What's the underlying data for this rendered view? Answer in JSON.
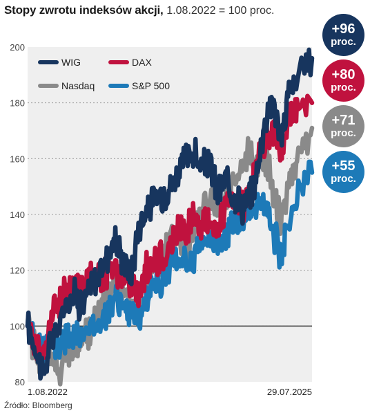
{
  "title": {
    "bold": "Stopy zwrotu indeksów akcji,",
    "rest": "1.08.2022 = 100 proc."
  },
  "source": "Źródło: Bloomberg",
  "badges": [
    {
      "value": "+96",
      "unit": "proc.",
      "color": "#17355e"
    },
    {
      "value": "+80",
      "unit": "proc.",
      "color": "#c0123e"
    },
    {
      "value": "+71",
      "unit": "proc.",
      "color": "#8a8a8a"
    },
    {
      "value": "+55",
      "unit": "proc.",
      "color": "#1d7ab8"
    }
  ],
  "chart_data": {
    "type": "line",
    "x_labels": [
      "1.08.2022",
      "29.07.2025"
    ],
    "x_range": [
      "2022-08-01",
      "2025-07-29"
    ],
    "ylim": [
      80,
      200
    ],
    "yticks": [
      80,
      100,
      120,
      140,
      160,
      180,
      200
    ],
    "baseline": 100,
    "grid": true,
    "legend": "top-left",
    "series": [
      {
        "name": "WIG",
        "color": "#17355e",
        "points": [
          [
            "2022-08-01",
            100
          ],
          [
            "2022-09-01",
            92
          ],
          [
            "2022-10-01",
            83
          ],
          [
            "2022-11-01",
            95
          ],
          [
            "2022-12-01",
            100
          ],
          [
            "2023-01-01",
            110
          ],
          [
            "2023-02-01",
            112
          ],
          [
            "2023-03-01",
            106
          ],
          [
            "2023-04-01",
            115
          ],
          [
            "2023-05-01",
            118
          ],
          [
            "2023-06-01",
            125
          ],
          [
            "2023-07-01",
            131
          ],
          [
            "2023-08-01",
            124
          ],
          [
            "2023-09-01",
            118
          ],
          [
            "2023-10-01",
            135
          ],
          [
            "2023-11-01",
            142
          ],
          [
            "2023-12-01",
            145
          ],
          [
            "2024-01-01",
            147
          ],
          [
            "2024-02-01",
            150
          ],
          [
            "2024-03-01",
            155
          ],
          [
            "2024-04-01",
            160
          ],
          [
            "2024-05-01",
            162
          ],
          [
            "2024-06-01",
            156
          ],
          [
            "2024-07-01",
            159
          ],
          [
            "2024-08-01",
            147
          ],
          [
            "2024-09-01",
            152
          ],
          [
            "2024-10-01",
            148
          ],
          [
            "2024-11-01",
            143
          ],
          [
            "2024-12-01",
            145
          ],
          [
            "2025-01-01",
            156
          ],
          [
            "2025-02-01",
            175
          ],
          [
            "2025-03-01",
            182
          ],
          [
            "2025-04-01",
            165
          ],
          [
            "2025-05-01",
            185
          ],
          [
            "2025-06-01",
            188
          ],
          [
            "2025-07-29",
            196
          ]
        ]
      },
      {
        "name": "DAX",
        "color": "#c0123e",
        "points": [
          [
            "2022-08-01",
            100
          ],
          [
            "2022-09-01",
            94
          ],
          [
            "2022-10-01",
            88
          ],
          [
            "2022-11-01",
            104
          ],
          [
            "2022-12-01",
            108
          ],
          [
            "2023-01-01",
            114
          ],
          [
            "2023-02-01",
            116
          ],
          [
            "2023-03-01",
            113
          ],
          [
            "2023-04-01",
            118
          ],
          [
            "2023-05-01",
            118
          ],
          [
            "2023-06-01",
            120
          ],
          [
            "2023-07-01",
            122
          ],
          [
            "2023-08-01",
            118
          ],
          [
            "2023-09-01",
            114
          ],
          [
            "2023-10-01",
            112
          ],
          [
            "2023-11-01",
            120
          ],
          [
            "2023-12-01",
            125
          ],
          [
            "2024-01-01",
            124
          ],
          [
            "2024-02-01",
            128
          ],
          [
            "2024-03-01",
            135
          ],
          [
            "2024-04-01",
            134
          ],
          [
            "2024-05-01",
            140
          ],
          [
            "2024-06-01",
            136
          ],
          [
            "2024-07-01",
            138
          ],
          [
            "2024-08-01",
            134
          ],
          [
            "2024-09-01",
            142
          ],
          [
            "2024-10-01",
            144
          ],
          [
            "2024-11-01",
            142
          ],
          [
            "2024-12-01",
            148
          ],
          [
            "2025-01-01",
            160
          ],
          [
            "2025-02-01",
            168
          ],
          [
            "2025-03-01",
            170
          ],
          [
            "2025-04-01",
            160
          ],
          [
            "2025-05-01",
            175
          ],
          [
            "2025-06-01",
            178
          ],
          [
            "2025-07-29",
            180
          ]
        ]
      },
      {
        "name": "Nasdaq",
        "color": "#8a8a8a",
        "points": [
          [
            "2022-08-01",
            100
          ],
          [
            "2022-09-01",
            92
          ],
          [
            "2022-10-01",
            85
          ],
          [
            "2022-11-01",
            90
          ],
          [
            "2022-12-01",
            84
          ],
          [
            "2023-01-01",
            90
          ],
          [
            "2023-02-01",
            92
          ],
          [
            "2023-03-01",
            96
          ],
          [
            "2023-04-01",
            98
          ],
          [
            "2023-05-01",
            106
          ],
          [
            "2023-06-01",
            112
          ],
          [
            "2023-07-01",
            115
          ],
          [
            "2023-08-01",
            112
          ],
          [
            "2023-09-01",
            108
          ],
          [
            "2023-10-01",
            106
          ],
          [
            "2023-11-01",
            116
          ],
          [
            "2023-12-01",
            122
          ],
          [
            "2024-01-01",
            125
          ],
          [
            "2024-02-01",
            130
          ],
          [
            "2024-03-01",
            133
          ],
          [
            "2024-04-01",
            128
          ],
          [
            "2024-05-01",
            136
          ],
          [
            "2024-06-01",
            142
          ],
          [
            "2024-07-01",
            145
          ],
          [
            "2024-08-01",
            140
          ],
          [
            "2024-09-01",
            145
          ],
          [
            "2024-10-01",
            150
          ],
          [
            "2024-11-01",
            155
          ],
          [
            "2024-12-01",
            162
          ],
          [
            "2025-01-01",
            158
          ],
          [
            "2025-02-01",
            160
          ],
          [
            "2025-03-01",
            150
          ],
          [
            "2025-04-01",
            138
          ],
          [
            "2025-05-01",
            152
          ],
          [
            "2025-06-01",
            160
          ],
          [
            "2025-07-29",
            171
          ]
        ]
      },
      {
        "name": "S&P 500",
        "color": "#1d7ab8",
        "points": [
          [
            "2022-08-01",
            100
          ],
          [
            "2022-09-01",
            94
          ],
          [
            "2022-10-01",
            90
          ],
          [
            "2022-11-01",
            96
          ],
          [
            "2022-12-01",
            93
          ],
          [
            "2023-01-01",
            97
          ],
          [
            "2023-02-01",
            96
          ],
          [
            "2023-03-01",
            98
          ],
          [
            "2023-04-01",
            100
          ],
          [
            "2023-05-01",
            101
          ],
          [
            "2023-06-01",
            106
          ],
          [
            "2023-07-01",
            110
          ],
          [
            "2023-08-01",
            108
          ],
          [
            "2023-09-01",
            104
          ],
          [
            "2023-10-01",
            101
          ],
          [
            "2023-11-01",
            110
          ],
          [
            "2023-12-01",
            115
          ],
          [
            "2024-01-01",
            117
          ],
          [
            "2024-02-01",
            121
          ],
          [
            "2024-03-01",
            125
          ],
          [
            "2024-04-01",
            121
          ],
          [
            "2024-05-01",
            126
          ],
          [
            "2024-06-01",
            130
          ],
          [
            "2024-07-01",
            132
          ],
          [
            "2024-08-01",
            130
          ],
          [
            "2024-09-01",
            134
          ],
          [
            "2024-10-01",
            136
          ],
          [
            "2024-11-01",
            140
          ],
          [
            "2024-12-01",
            142
          ],
          [
            "2025-01-01",
            144
          ],
          [
            "2025-02-01",
            143
          ],
          [
            "2025-03-01",
            135
          ],
          [
            "2025-04-01",
            125
          ],
          [
            "2025-05-01",
            138
          ],
          [
            "2025-06-01",
            145
          ],
          [
            "2025-07-29",
            155
          ]
        ]
      }
    ]
  }
}
